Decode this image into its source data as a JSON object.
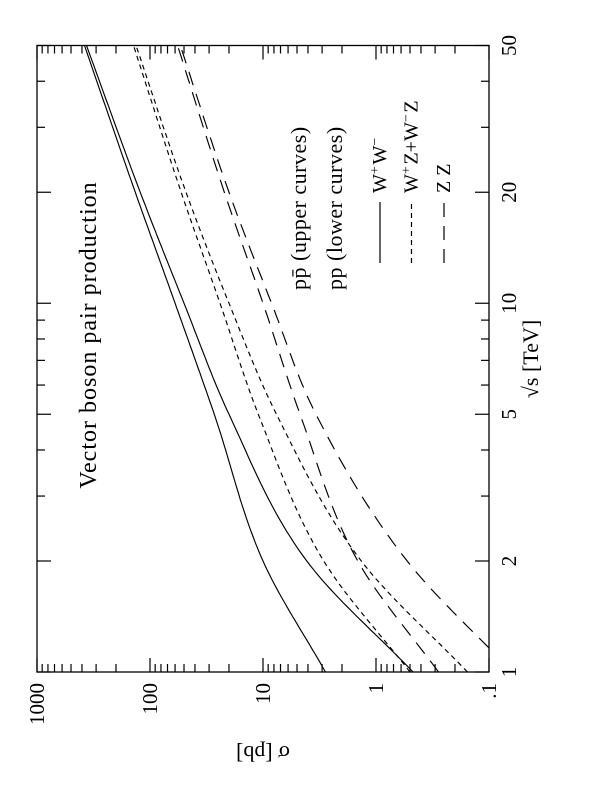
{
  "figure": {
    "title": "Vector boson pair production",
    "x_axis": {
      "label": "√s [TeV]",
      "scale": "log",
      "min": 1,
      "max": 50,
      "major_ticks": [
        1,
        2,
        5,
        10,
        20,
        50
      ],
      "major_tick_labels": [
        "1",
        "2",
        "5",
        "10",
        "20",
        "50"
      ],
      "minor_ticks": [
        3,
        4,
        6,
        7,
        8,
        9,
        30,
        40
      ]
    },
    "y_axis": {
      "label": "σ [pb]",
      "scale": "log",
      "min": 0.1,
      "max": 1000,
      "major_ticks": [
        0.1,
        1,
        10,
        100,
        1000
      ],
      "major_tick_labels": [
        ".1",
        "1",
        "10",
        "100",
        "1000"
      ],
      "minor_ticks": [
        0.2,
        0.3,
        0.4,
        0.5,
        0.6,
        0.7,
        0.8,
        0.9,
        2,
        3,
        4,
        5,
        6,
        7,
        8,
        9,
        20,
        30,
        40,
        50,
        60,
        70,
        80,
        90,
        200,
        300,
        400,
        500,
        600,
        700,
        800,
        900
      ]
    },
    "legend": {
      "upper": "pp̄ (upper curves)",
      "lower": "pp (lower curves)",
      "entries": [
        {
          "label": "W+W-",
          "label_parts": [
            [
              "W",
              0
            ],
            [
              "+",
              1
            ],
            [
              "W",
              0
            ],
            [
              "−",
              1
            ]
          ],
          "style": "solid"
        },
        {
          "label": "W+Z+W-Z",
          "label_parts": [
            [
              "W",
              0
            ],
            [
              "+",
              1
            ],
            [
              "Z+W",
              0
            ],
            [
              "−",
              1
            ],
            [
              "Z",
              0
            ]
          ],
          "style": "short-dash"
        },
        {
          "label": "Z Z",
          "label_parts": [
            [
              "Z Z",
              0
            ]
          ],
          "style": "long-dash"
        }
      ]
    },
    "ink_color": "#000000",
    "background_color": "#ffffff"
  },
  "chart_data": {
    "type": "line",
    "title": "Vector boson pair production",
    "xlabel": "√s [TeV]",
    "ylabel": "σ [pb]",
    "xscale": "log",
    "yscale": "log",
    "xlim": [
      1,
      50
    ],
    "ylim": [
      0.1,
      1000
    ],
    "grid": false,
    "legend_position": "right-middle-inside",
    "series": [
      {
        "name": "W+W- (pp̄, upper)",
        "process": "W+W-",
        "beam": "ppbar",
        "style": "solid",
        "points": [
          [
            1,
            2.8
          ],
          [
            2,
            10
          ],
          [
            5,
            27
          ],
          [
            10,
            60
          ],
          [
            20,
            135
          ],
          [
            50,
            380
          ]
        ]
      },
      {
        "name": "W+W- (pp, lower)",
        "process": "W+W-",
        "beam": "pp",
        "style": "solid",
        "points": [
          [
            1,
            0.47
          ],
          [
            2,
            4.1
          ],
          [
            5,
            20
          ],
          [
            10,
            50
          ],
          [
            20,
            122
          ],
          [
            50,
            365
          ]
        ]
      },
      {
        "name": "W+Z+W-Z (pp̄, upper)",
        "process": "W+Z+W-Z",
        "beam": "ppbar",
        "style": "short-dash",
        "points": [
          [
            1,
            0.5
          ],
          [
            2,
            2.9
          ],
          [
            5,
            11
          ],
          [
            10,
            24
          ],
          [
            20,
            53
          ],
          [
            50,
            140
          ]
        ]
      },
      {
        "name": "W+Z+W-Z (pp, lower)",
        "process": "W+Z+W-Z",
        "beam": "pp",
        "style": "short-dash",
        "points": [
          [
            1,
            0.155
          ],
          [
            2,
            1.35
          ],
          [
            5,
            7.6
          ],
          [
            10,
            20
          ],
          [
            20,
            48
          ],
          [
            50,
            133
          ]
        ]
      },
      {
        "name": "ZZ (pp̄, upper)",
        "process": "ZZ",
        "beam": "ppbar",
        "style": "long-dash",
        "points": [
          [
            1,
            0.28
          ],
          [
            2,
            1.45
          ],
          [
            5,
            4.7
          ],
          [
            10,
            10
          ],
          [
            20,
            22
          ],
          [
            50,
            57
          ]
        ]
      },
      {
        "name": "ZZ (pp, lower)",
        "process": "ZZ",
        "beam": "pp",
        "style": "long-dash",
        "points": [
          [
            1,
            0.062
          ],
          [
            2,
            0.53
          ],
          [
            5,
            3.4
          ],
          [
            10,
            8.4
          ],
          [
            20,
            20
          ],
          [
            50,
            54
          ]
        ]
      }
    ]
  }
}
